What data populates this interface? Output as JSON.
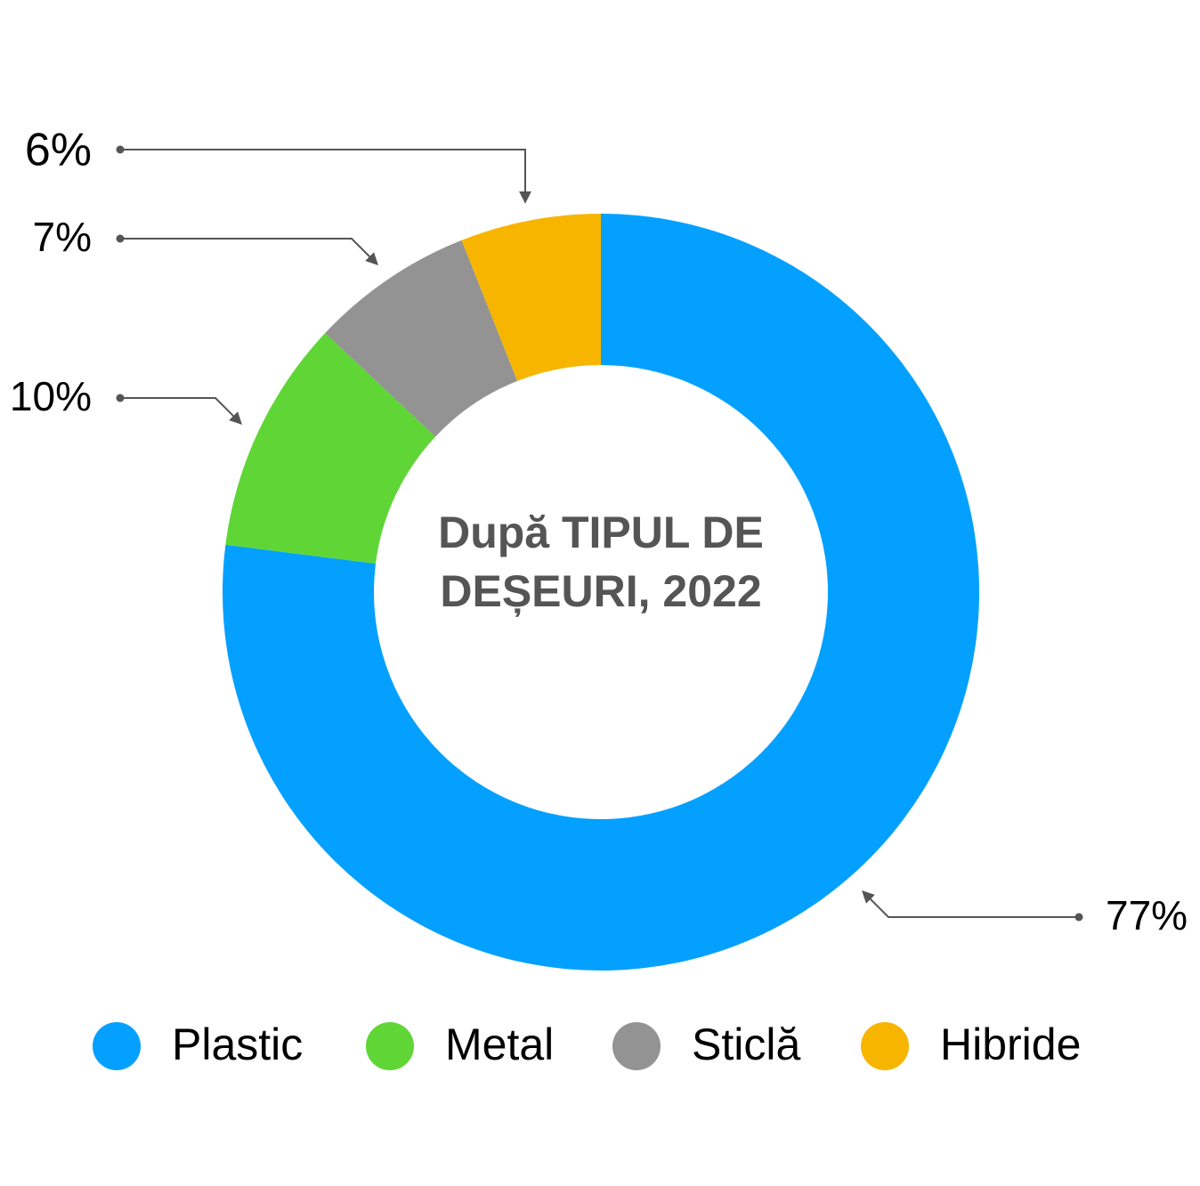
{
  "chart_data": {
    "type": "donut",
    "title": "După TIPUL DE DEȘEURI, 2022",
    "categories": [
      "Plastic",
      "Metal",
      "Sticlă",
      "Hibride"
    ],
    "values": [
      77,
      10,
      7,
      6
    ],
    "value_labels": [
      "77%",
      "10%",
      "7%",
      "6%"
    ],
    "colors": [
      "#03a0ff",
      "#5fd636",
      "#939393",
      "#f7b500"
    ]
  }
}
